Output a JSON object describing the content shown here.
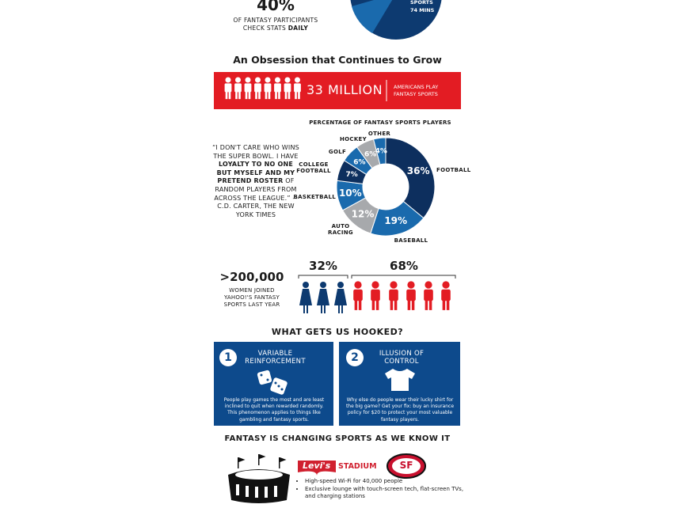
{
  "top": {
    "percent": "40%",
    "line1": "OF FANTASY PARTICIPANTS",
    "line2": "CHECK STATS",
    "line2_bold": "DAILY",
    "pie_label": "SPORTS",
    "pie_value": "74 MINS"
  },
  "growth": {
    "heading": "An Obsession that Continues to Grow",
    "number": "33 MILLION",
    "caption": "AMERICANS PLAY FANTASY SPORTS"
  },
  "quote": {
    "part1": "“I DON'T CARE WHO WINS THE SUPER BOWL. I HAVE",
    "part2": "LOYALTY TO NO ONE BUT MYSELF AND MY PRETEND ROSTER",
    "part3": "OF RANDOM PLAYERS FROM ACROSS THE LEAGUE.”",
    "attribution": "--C.D. CARTER, THE NEW YORK TIMES"
  },
  "chart_data": {
    "type": "donut",
    "title": "PERCENTAGE OF FANTASY SPORTS PLAYERS",
    "categories": [
      "FOOTBALL",
      "BASEBALL",
      "AUTO RACING",
      "BASKETBALL",
      "COLLEGE FOOTBALL",
      "GOLF",
      "HOCKEY",
      "OTHER"
    ],
    "values": [
      36,
      19,
      12,
      10,
      7,
      6,
      6,
      4
    ],
    "value_labels": [
      "36%",
      "19%",
      "12%",
      "10%",
      "7%",
      "6%",
      "6%",
      "4%"
    ],
    "colors": [
      "#0d2f5e",
      "#1a6aad",
      "#a7a9ac",
      "#1a6aad",
      "#0d2f5e",
      "#1a6aad",
      "#a7a9ac",
      "#1a6aad"
    ]
  },
  "women": {
    "number": ">200,000",
    "caption": "WOMEN JOINED YAHOO!'S FANTASY SPORTS LAST YEAR",
    "women_share": "32%",
    "men_share": "68%"
  },
  "hooked": {
    "heading": "WHAT GETS US HOOKED?",
    "boxes": [
      {
        "number": "1",
        "title": "VARIABLE REINFORCEMENT",
        "text": "People play games the most and are least inclined to quit when rewarded randomly. This phenomenon applies to things like gambling and fantasy sports."
      },
      {
        "number": "2",
        "title": "ILLUSION OF CONTROL",
        "text": "Why else do people wear their lucky shirt for the big game? Get your fix: buy an insurance policy for $20 to protect your most valuable fantasy players."
      }
    ]
  },
  "changing": {
    "heading": "FANTASY IS CHANGING SPORTS AS WE KNOW IT",
    "logo_brand": "Levi's",
    "logo_stadium": "STADIUM",
    "team_logo": "SF",
    "bullets": [
      "High-speed Wi-Fi for 40,000 people",
      "Exclusive lounge with touch-screen tech, flat-screen TVs, and charging stations"
    ]
  }
}
